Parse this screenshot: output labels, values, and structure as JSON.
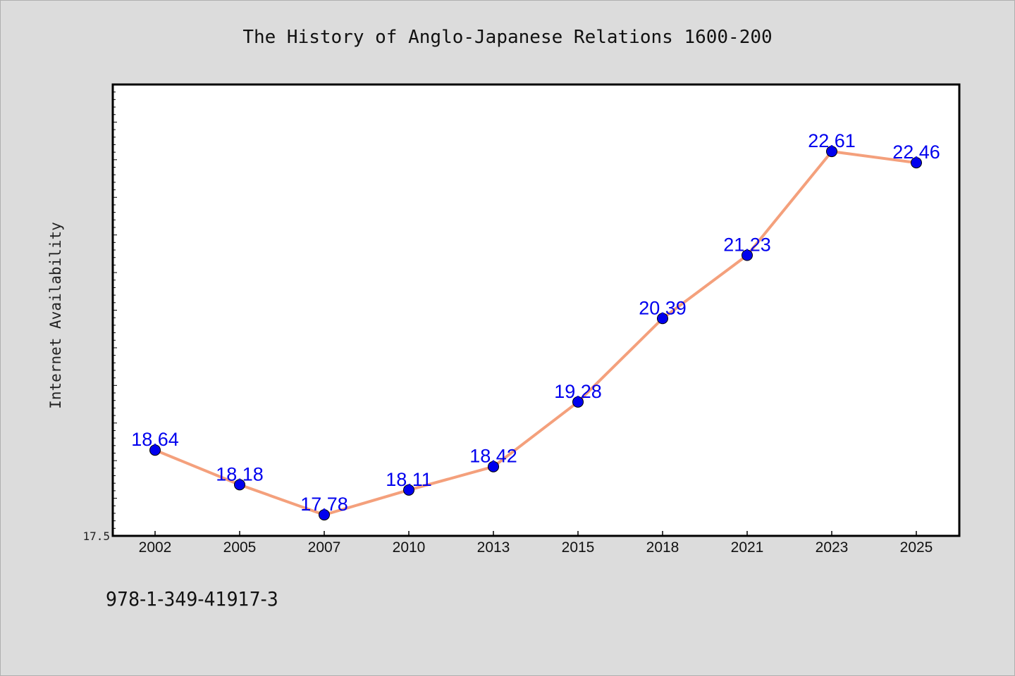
{
  "chart_data": {
    "type": "line",
    "title": "The History of Anglo-Japanese Relations 1600-200",
    "xlabel": "",
    "ylabel": "Internet Availability",
    "categories": [
      "2002",
      "2005",
      "2007",
      "2010",
      "2013",
      "2015",
      "2018",
      "2021",
      "2023",
      "2025"
    ],
    "series": [
      {
        "values": [
          18.64,
          18.18,
          17.78,
          18.11,
          18.42,
          19.28,
          20.39,
          21.23,
          22.61,
          22.46
        ]
      }
    ],
    "data_labels": [
      "18.64",
      "18.18",
      "17.78",
      "18.11",
      "18.42",
      "19.28",
      "20.39",
      "21.23",
      "22.61",
      "22.46"
    ],
    "ylim": [
      17.5,
      23.5
    ],
    "y_tick_labels": [
      "17.5"
    ],
    "grid": false,
    "legend": "none",
    "colors": {
      "line": "#f4a07c",
      "marker": "#0000ee",
      "data_label": "#0000ee",
      "plot_background": "#ffffff",
      "page_background": "#dcdcdc"
    }
  },
  "footnote": "978-1-349-41917-3"
}
